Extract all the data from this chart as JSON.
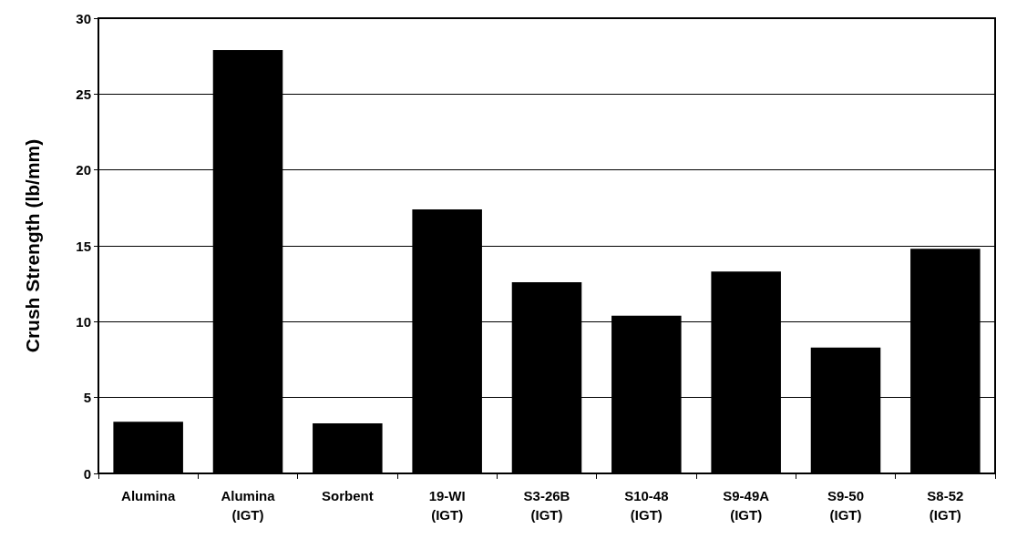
{
  "chart_data": {
    "type": "bar",
    "ylabel": "Crush Strength (lb/mm)",
    "categories": [
      "Alumina",
      "Alumina\n(IGT)",
      "Sorbent",
      "19-WI\n(IGT)",
      "S3-26B\n(IGT)",
      "S10-48\n(IGT)",
      "S9-49A\n(IGT)",
      "S9-50\n(IGT)",
      "S8-52\n(IGT)"
    ],
    "values": [
      3.4,
      27.9,
      3.3,
      17.4,
      12.6,
      10.4,
      13.3,
      8.3,
      14.8
    ],
    "color": "#000000",
    "ylim": [
      0,
      30
    ],
    "yticks": [
      0,
      5,
      10,
      15,
      20,
      25,
      30
    ],
    "grid": "y"
  }
}
